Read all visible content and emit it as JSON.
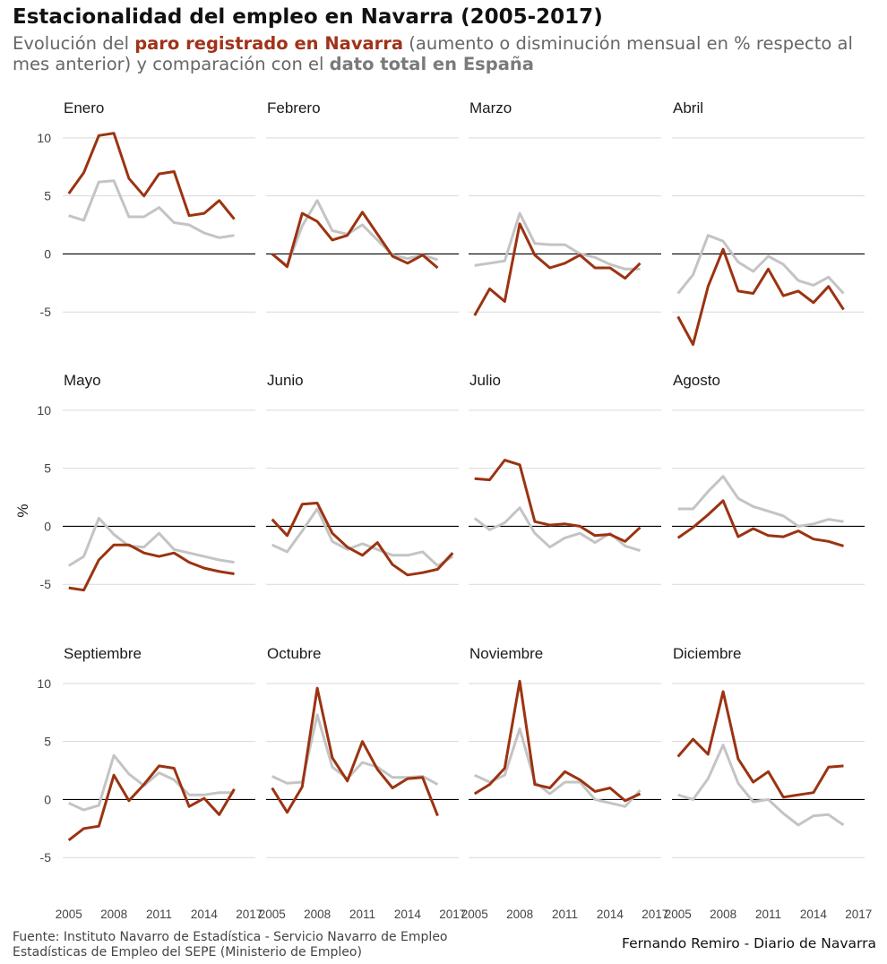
{
  "title": "Estacionalidad del empleo en Navarra (2005-2017)",
  "subtitle": {
    "part1": "Evolución del ",
    "highlight_navarra": "paro registrado en Navarra",
    "part2": " (aumento o disminución mensual en % respecto al mes anterior) y comparación con el ",
    "highlight_spain": "dato total en España"
  },
  "caption": {
    "source_line1": "Fuente: Instituto Navarro de Estadística - Servicio Navarro de Empleo",
    "source_line2": "Estadísticas de Empleo del SEPE (Ministerio de Empleo)",
    "author": "Fernando  Remiro - Diario de Navarra"
  },
  "colors": {
    "navarra": "#9b3311",
    "spain": "#c4c4c4",
    "zero_line": "#000000",
    "grid": "#d9d9d9"
  },
  "chart_data": {
    "type": "line",
    "facets": "3 rows x 4 columns, shared axes",
    "ylabel": "%",
    "ylim": [
      -9,
      12
    ],
    "yticks": [
      -5,
      0,
      5,
      10
    ],
    "xticks": [
      2005,
      2008,
      2011,
      2014,
      2017
    ],
    "x": [
      2005,
      2006,
      2007,
      2008,
      2009,
      2010,
      2011,
      2012,
      2013,
      2014,
      2015,
      2016
    ],
    "grid": true,
    "panels": [
      {
        "month": "Enero",
        "navarra": [
          5.2,
          7.0,
          10.2,
          10.4,
          6.5,
          5.0,
          6.9,
          7.1,
          3.3,
          3.5,
          4.6,
          3.0
        ],
        "spain": [
          3.3,
          2.9,
          6.2,
          6.3,
          3.2,
          3.2,
          4.0,
          2.7,
          2.5,
          1.8,
          1.4,
          1.6
        ]
      },
      {
        "month": "Febrero",
        "navarra": [
          0.0,
          -1.1,
          3.5,
          2.8,
          1.2,
          1.6,
          3.6,
          1.7,
          -0.2,
          -0.8,
          -0.1,
          -1.2
        ],
        "spain": [
          0.0,
          -1.0,
          2.4,
          4.6,
          2.0,
          1.7,
          2.5,
          1.2,
          -0.1,
          -0.4,
          -0.1,
          -0.5
        ]
      },
      {
        "month": "Marzo",
        "navarra": [
          -5.3,
          -3.0,
          -4.1,
          2.6,
          -0.1,
          -1.2,
          -0.8,
          -0.1,
          -1.2,
          -1.2,
          -2.1,
          -0.8
        ],
        "spain": [
          -1.0,
          -0.8,
          -0.6,
          3.5,
          0.9,
          0.8,
          0.8,
          0.0,
          -0.3,
          -0.9,
          -1.3,
          -1.3
        ]
      },
      {
        "month": "Abril",
        "navarra": [
          -5.4,
          -7.8,
          -2.8,
          0.4,
          -3.2,
          -3.4,
          -1.3,
          -3.6,
          -3.2,
          -4.2,
          -2.8,
          -4.8
        ],
        "spain": [
          -3.4,
          -1.8,
          1.6,
          1.1,
          -0.7,
          -1.5,
          -0.2,
          -0.9,
          -2.3,
          -2.7,
          -2.0,
          -3.4
        ]
      },
      {
        "month": "Mayo",
        "navarra": [
          -5.3,
          -5.5,
          -2.9,
          -1.6,
          -1.6,
          -2.3,
          -2.6,
          -2.3,
          -3.1,
          -3.6,
          -3.9,
          -4.1
        ],
        "spain": [
          -3.4,
          -2.6,
          0.7,
          -0.7,
          -1.7,
          -1.8,
          -0.6,
          -2.0,
          -2.3,
          -2.6,
          -2.9,
          -3.1
        ]
      },
      {
        "month": "Junio",
        "navarra": [
          0.6,
          -0.8,
          1.9,
          2.0,
          -0.6,
          -1.8,
          -2.5,
          -1.4,
          -3.3,
          -4.2,
          -4.0,
          -3.7,
          -2.3
        ],
        "spain": [
          -1.6,
          -2.2,
          -0.4,
          1.5,
          -1.3,
          -2.0,
          -1.5,
          -2.0,
          -2.5,
          -2.5,
          -2.2,
          -3.4,
          -2.6
        ],
        "x": [
          2005,
          2006,
          2007,
          2008,
          2009,
          2010,
          2011,
          2012,
          2013,
          2014,
          2015,
          2016,
          2017
        ]
      },
      {
        "month": "Julio",
        "navarra": [
          4.1,
          4.0,
          5.7,
          5.3,
          0.4,
          0.1,
          0.2,
          0.0,
          -0.8,
          -0.7,
          -1.3,
          -0.1
        ],
        "spain": [
          0.7,
          -0.3,
          0.3,
          1.6,
          -0.6,
          -1.8,
          -1.0,
          -0.6,
          -1.4,
          -0.6,
          -1.7,
          -2.1
        ]
      },
      {
        "month": "Agosto",
        "navarra": [
          -1.0,
          -0.1,
          1.0,
          2.2,
          -0.9,
          -0.2,
          -0.8,
          -0.9,
          -0.4,
          -1.1,
          -1.3,
          -1.7
        ],
        "spain": [
          1.5,
          1.5,
          3.0,
          4.3,
          2.4,
          1.7,
          1.3,
          0.9,
          0.0,
          0.2,
          0.6,
          0.4
        ]
      },
      {
        "month": "Septiembre",
        "navarra": [
          -3.5,
          -2.5,
          -2.3,
          2.1,
          -0.1,
          1.3,
          2.9,
          2.7,
          -0.6,
          0.1,
          -1.3,
          0.9
        ],
        "spain": [
          -0.3,
          -0.9,
          -0.5,
          3.8,
          2.2,
          1.2,
          2.3,
          1.7,
          0.4,
          0.4,
          0.6,
          0.6
        ]
      },
      {
        "month": "Octubre",
        "navarra": [
          1.0,
          -1.1,
          1.1,
          9.6,
          3.6,
          1.6,
          5.0,
          2.6,
          1.0,
          1.8,
          1.9,
          -1.4
        ],
        "spain": [
          2.0,
          1.4,
          1.5,
          7.3,
          2.8,
          1.8,
          3.2,
          2.8,
          1.9,
          1.9,
          2.0,
          1.3
        ]
      },
      {
        "month": "Noviembre",
        "navarra": [
          0.5,
          1.3,
          2.7,
          10.2,
          1.3,
          1.0,
          2.4,
          1.7,
          0.7,
          1.0,
          -0.1,
          0.5
        ],
        "spain": [
          2.1,
          1.5,
          2.1,
          6.1,
          1.5,
          0.5,
          1.5,
          1.5,
          0.0,
          -0.3,
          -0.6,
          0.8
        ]
      },
      {
        "month": "Diciembre",
        "navarra": [
          3.7,
          5.2,
          3.9,
          9.3,
          3.5,
          1.5,
          2.4,
          0.2,
          0.4,
          0.6,
          2.8,
          2.9
        ],
        "spain": [
          0.4,
          0.0,
          1.8,
          4.7,
          1.4,
          -0.2,
          0.0,
          -1.2,
          -2.2,
          -1.4,
          -1.3,
          -2.2
        ]
      }
    ]
  }
}
